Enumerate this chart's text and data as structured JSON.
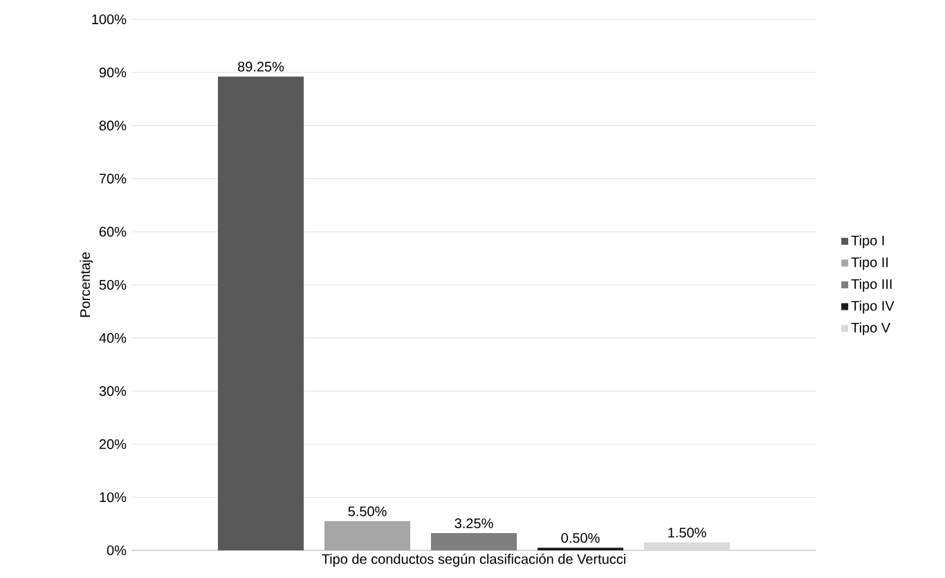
{
  "chart_data": {
    "type": "bar",
    "xlabel": "Tipo de conductos según clasificación de Vertucci",
    "ylabel": "Porcentaje",
    "categories": [
      null
    ],
    "series": [
      {
        "name": "Tipo I",
        "color": "#595959",
        "values": [
          89.25
        ],
        "value_labels": [
          "89.25%"
        ]
      },
      {
        "name": "Tipo II",
        "color": "#a6a6a6",
        "values": [
          5.5
        ],
        "value_labels": [
          "5.50%"
        ]
      },
      {
        "name": "Tipo III",
        "color": "#7f7f7f",
        "values": [
          3.25
        ],
        "value_labels": [
          "3.25%"
        ]
      },
      {
        "name": "Tipo IV",
        "color": "#1a1a1a",
        "values": [
          0.5
        ],
        "value_labels": [
          "0.50%"
        ]
      },
      {
        "name": "Tipo V",
        "color": "#d9d9d9",
        "values": [
          1.5
        ],
        "value_labels": [
          "1.50%"
        ]
      }
    ],
    "ylim": [
      0,
      100
    ],
    "yticks": [
      {
        "value": 0,
        "label": "0%"
      },
      {
        "value": 10,
        "label": "10%"
      },
      {
        "value": 20,
        "label": "20%"
      },
      {
        "value": 30,
        "label": "30%"
      },
      {
        "value": 40,
        "label": "40%"
      },
      {
        "value": 50,
        "label": "50%"
      },
      {
        "value": 60,
        "label": "60%"
      },
      {
        "value": 70,
        "label": "70%"
      },
      {
        "value": 80,
        "label": "80%"
      },
      {
        "value": 90,
        "label": "90%"
      },
      {
        "value": 100,
        "label": "100%"
      }
    ],
    "grid": "y",
    "legend": "right"
  }
}
